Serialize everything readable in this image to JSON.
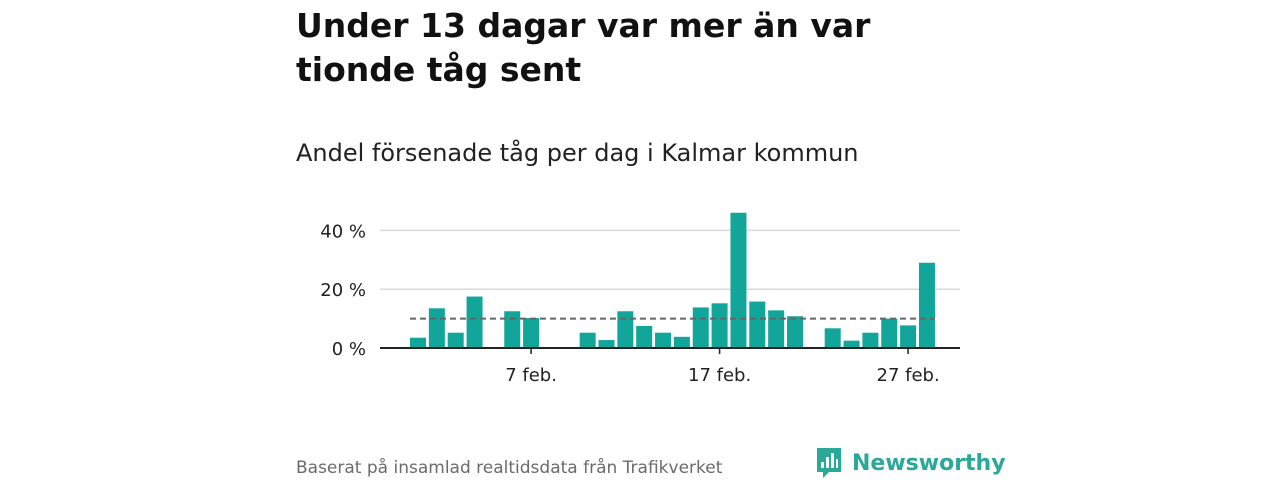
{
  "header": {
    "title": "Under 13 dagar var mer än var tionde tåg sent",
    "subtitle": "Andel försenade tåg per dag i Kalmar kommun"
  },
  "footer": {
    "source": "Baserat på insamlad realtidsdata från Trafikverket",
    "brand_name": "Newsworthy",
    "brand_icon": "bar-chart-logo-icon"
  },
  "colors": {
    "bar": "#12a59a",
    "reference_line": "#666666",
    "grid": "#d9d9d9",
    "axis": "#222222",
    "brand": "#2aa898"
  },
  "chart_data": {
    "type": "bar",
    "x": [
      "2024-02-01",
      "2024-02-02",
      "2024-02-03",
      "2024-02-04",
      "2024-02-05",
      "2024-02-06",
      "2024-02-07",
      "2024-02-08",
      "2024-02-09",
      "2024-02-10",
      "2024-02-11",
      "2024-02-12",
      "2024-02-13",
      "2024-02-14",
      "2024-02-15",
      "2024-02-16",
      "2024-02-17",
      "2024-02-18",
      "2024-02-19",
      "2024-02-20",
      "2024-02-21",
      "2024-02-22",
      "2024-02-23",
      "2024-02-24",
      "2024-02-25",
      "2024-02-26",
      "2024-02-27",
      "2024-02-28",
      "2024-02-29"
    ],
    "values": [
      3.5,
      13.5,
      5.2,
      17.5,
      null,
      12.5,
      10.2,
      null,
      null,
      5.2,
      2.7,
      12.5,
      7.5,
      5.2,
      3.8,
      13.8,
      15.2,
      46.0,
      15.8,
      12.8,
      10.8,
      null,
      6.7,
      2.5,
      5.2,
      10.0,
      7.7,
      29.0,
      null
    ],
    "reference_value": 10,
    "reference_style": "dashed",
    "ylim": [
      0,
      50
    ],
    "yticks": [
      0,
      20,
      40
    ],
    "ytick_labels": [
      "0 %",
      "20 %",
      "40 %"
    ],
    "xticks": [
      "2024-02-07",
      "2024-02-17",
      "2024-02-27"
    ],
    "xtick_labels": [
      "7 feb.",
      "17 feb.",
      "27 feb."
    ],
    "grid": true,
    "xlabel": "",
    "ylabel": ""
  }
}
